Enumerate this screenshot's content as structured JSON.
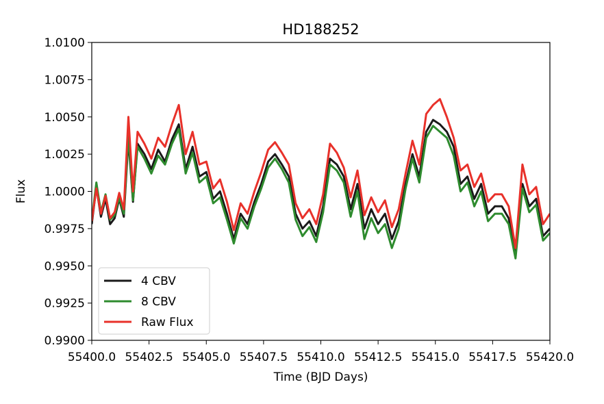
{
  "chart_data": {
    "type": "line",
    "title": "HD188252",
    "xlabel": "Time (BJD Days)",
    "ylabel": "Flux",
    "xlim": [
      55400.0,
      55420.0
    ],
    "ylim": [
      0.99,
      1.01
    ],
    "xticks": [
      55400.0,
      55402.5,
      55405.0,
      55407.5,
      55410.0,
      55412.5,
      55415.0,
      55417.5,
      55420.0
    ],
    "xtick_labels": [
      "55400.0",
      "55402.5",
      "55405.0",
      "55407.5",
      "55410.0",
      "55412.5",
      "55415.0",
      "55417.5",
      "55420.0"
    ],
    "yticks": [
      0.99,
      0.9925,
      0.995,
      0.9975,
      1.0,
      1.0025,
      1.005,
      1.0075,
      1.01
    ],
    "ytick_labels": [
      "0.9900",
      "0.9925",
      "0.9950",
      "0.9975",
      "1.0000",
      "1.0025",
      "1.0050",
      "1.0075",
      "1.0100"
    ],
    "grid": false,
    "legend_position": "lower-left",
    "series": [
      {
        "name": "4 CBV",
        "color": "#1a1a1a",
        "x": [
          55400.0,
          55400.2,
          55400.4,
          55400.6,
          55400.8,
          55401.0,
          55401.2,
          55401.4,
          55401.6,
          55401.8,
          55402.0,
          55402.3,
          55402.6,
          55402.9,
          55403.2,
          55403.5,
          55403.8,
          55404.1,
          55404.4,
          55404.7,
          55405.0,
          55405.3,
          55405.6,
          55405.9,
          55406.2,
          55406.5,
          55406.8,
          55407.1,
          55407.4,
          55407.7,
          55408.0,
          55408.3,
          55408.6,
          55408.9,
          55409.2,
          55409.5,
          55409.8,
          55410.1,
          55410.4,
          55410.7,
          55411.0,
          55411.3,
          55411.6,
          55411.9,
          55412.2,
          55412.5,
          55412.8,
          55413.1,
          55413.4,
          55413.7,
          55414.0,
          55414.3,
          55414.6,
          55414.9,
          55415.2,
          55415.5,
          55415.8,
          55416.1,
          55416.4,
          55416.7,
          55417.0,
          55417.3,
          55417.6,
          55417.9,
          55418.2,
          55418.5,
          55418.8,
          55419.1,
          55419.4,
          55419.7,
          55420.0
        ],
        "y": [
          0.9978,
          1.0003,
          0.9983,
          0.9995,
          0.9978,
          0.9982,
          0.9995,
          0.9983,
          1.0035,
          0.9993,
          1.0032,
          1.0025,
          1.0015,
          1.0028,
          1.002,
          1.0035,
          1.0045,
          1.0015,
          1.003,
          1.001,
          1.0013,
          0.9995,
          1.0,
          0.9985,
          0.9968,
          0.9985,
          0.9978,
          0.9993,
          1.0005,
          1.002,
          1.0025,
          1.0018,
          1.001,
          0.9985,
          0.9975,
          0.998,
          0.997,
          0.999,
          1.0022,
          1.0018,
          1.001,
          0.9988,
          1.0005,
          0.9975,
          0.9988,
          0.9978,
          0.9985,
          0.9968,
          0.998,
          1.0005,
          1.0025,
          1.001,
          1.004,
          1.0048,
          1.0045,
          1.004,
          1.003,
          1.0005,
          1.001,
          0.9995,
          1.0005,
          0.9985,
          0.999,
          0.999,
          0.9982,
          0.9958,
          1.0005,
          0.999,
          0.9995,
          0.997,
          0.9975
        ]
      },
      {
        "name": "8 CBV",
        "color": "#2e8b2e",
        "x": [
          55400.0,
          55400.2,
          55400.4,
          55400.6,
          55400.8,
          55401.0,
          55401.2,
          55401.4,
          55401.6,
          55401.8,
          55402.0,
          55402.3,
          55402.6,
          55402.9,
          55403.2,
          55403.5,
          55403.8,
          55404.1,
          55404.4,
          55404.7,
          55405.0,
          55405.3,
          55405.6,
          55405.9,
          55406.2,
          55406.5,
          55406.8,
          55407.1,
          55407.4,
          55407.7,
          55408.0,
          55408.3,
          55408.6,
          55408.9,
          55409.2,
          55409.5,
          55409.8,
          55410.1,
          55410.4,
          55410.7,
          55411.0,
          55411.3,
          55411.6,
          55411.9,
          55412.2,
          55412.5,
          55412.8,
          55413.1,
          55413.4,
          55413.7,
          55414.0,
          55414.3,
          55414.6,
          55414.9,
          55415.2,
          55415.5,
          55415.8,
          55416.1,
          55416.4,
          55416.7,
          55417.0,
          55417.3,
          55417.6,
          55417.9,
          55418.2,
          55418.5,
          55418.8,
          55419.1,
          55419.4,
          55419.7,
          55420.0
        ],
        "y": [
          0.998,
          1.0006,
          0.9986,
          0.9998,
          0.9981,
          0.9984,
          0.9996,
          0.9985,
          1.0038,
          0.9994,
          1.003,
          1.0022,
          1.0012,
          1.0024,
          1.0018,
          1.0032,
          1.0042,
          1.0012,
          1.0026,
          1.0006,
          1.001,
          0.9992,
          0.9996,
          0.9981,
          0.9965,
          0.9982,
          0.9975,
          0.999,
          1.0002,
          1.0016,
          1.0022,
          1.0015,
          1.0006,
          0.9981,
          0.997,
          0.9976,
          0.9966,
          0.9986,
          1.0018,
          1.0014,
          1.0006,
          0.9983,
          1.0,
          0.9968,
          0.9982,
          0.9972,
          0.9978,
          0.9962,
          0.9975,
          1.0002,
          1.0022,
          1.0006,
          1.0036,
          1.0044,
          1.004,
          1.0036,
          1.0024,
          1.0,
          1.0006,
          0.999,
          1.0,
          0.998,
          0.9985,
          0.9985,
          0.9978,
          0.9955,
          1.0002,
          0.9986,
          0.9991,
          0.9967,
          0.9972
        ]
      },
      {
        "name": "Raw Flux",
        "color": "#e8312a",
        "x": [
          55400.0,
          55400.2,
          55400.4,
          55400.6,
          55400.8,
          55401.0,
          55401.2,
          55401.4,
          55401.6,
          55401.8,
          55402.0,
          55402.3,
          55402.6,
          55402.9,
          55403.2,
          55403.5,
          55403.8,
          55404.1,
          55404.4,
          55404.7,
          55405.0,
          55405.3,
          55405.6,
          55405.9,
          55406.2,
          55406.5,
          55406.8,
          55407.1,
          55407.4,
          55407.7,
          55408.0,
          55408.3,
          55408.6,
          55408.9,
          55409.2,
          55409.5,
          55409.8,
          55410.1,
          55410.4,
          55410.7,
          55411.0,
          55411.3,
          55411.6,
          55411.9,
          55412.2,
          55412.5,
          55412.8,
          55413.1,
          55413.4,
          55413.7,
          55414.0,
          55414.3,
          55414.6,
          55414.9,
          55415.2,
          55415.5,
          55415.8,
          55416.1,
          55416.4,
          55416.7,
          55417.0,
          55417.3,
          55417.6,
          55417.9,
          55418.2,
          55418.5,
          55418.8,
          55419.1,
          55419.4,
          55419.7,
          55420.0
        ],
        "y": [
          0.998,
          1.0002,
          0.9985,
          0.9997,
          0.9982,
          0.9986,
          0.9999,
          0.9988,
          1.005,
          1.0,
          1.004,
          1.0032,
          1.0022,
          1.0036,
          1.003,
          1.0045,
          1.0058,
          1.0025,
          1.004,
          1.0018,
          1.002,
          1.0002,
          1.0008,
          0.9993,
          0.9974,
          0.9992,
          0.9985,
          1.0,
          1.0013,
          1.0028,
          1.0033,
          1.0026,
          1.0018,
          0.9992,
          0.9982,
          0.9988,
          0.9978,
          0.9998,
          1.0032,
          1.0026,
          1.0016,
          0.9996,
          1.0014,
          0.9984,
          0.9996,
          0.9986,
          0.9994,
          0.9976,
          0.9988,
          1.0012,
          1.0034,
          1.0018,
          1.0052,
          1.0058,
          1.0062,
          1.005,
          1.0036,
          1.0014,
          1.0018,
          1.0003,
          1.0012,
          0.9993,
          0.9998,
          0.9998,
          0.999,
          0.9962,
          1.0018,
          0.9998,
          1.0003,
          0.9978,
          0.9985
        ]
      }
    ]
  }
}
